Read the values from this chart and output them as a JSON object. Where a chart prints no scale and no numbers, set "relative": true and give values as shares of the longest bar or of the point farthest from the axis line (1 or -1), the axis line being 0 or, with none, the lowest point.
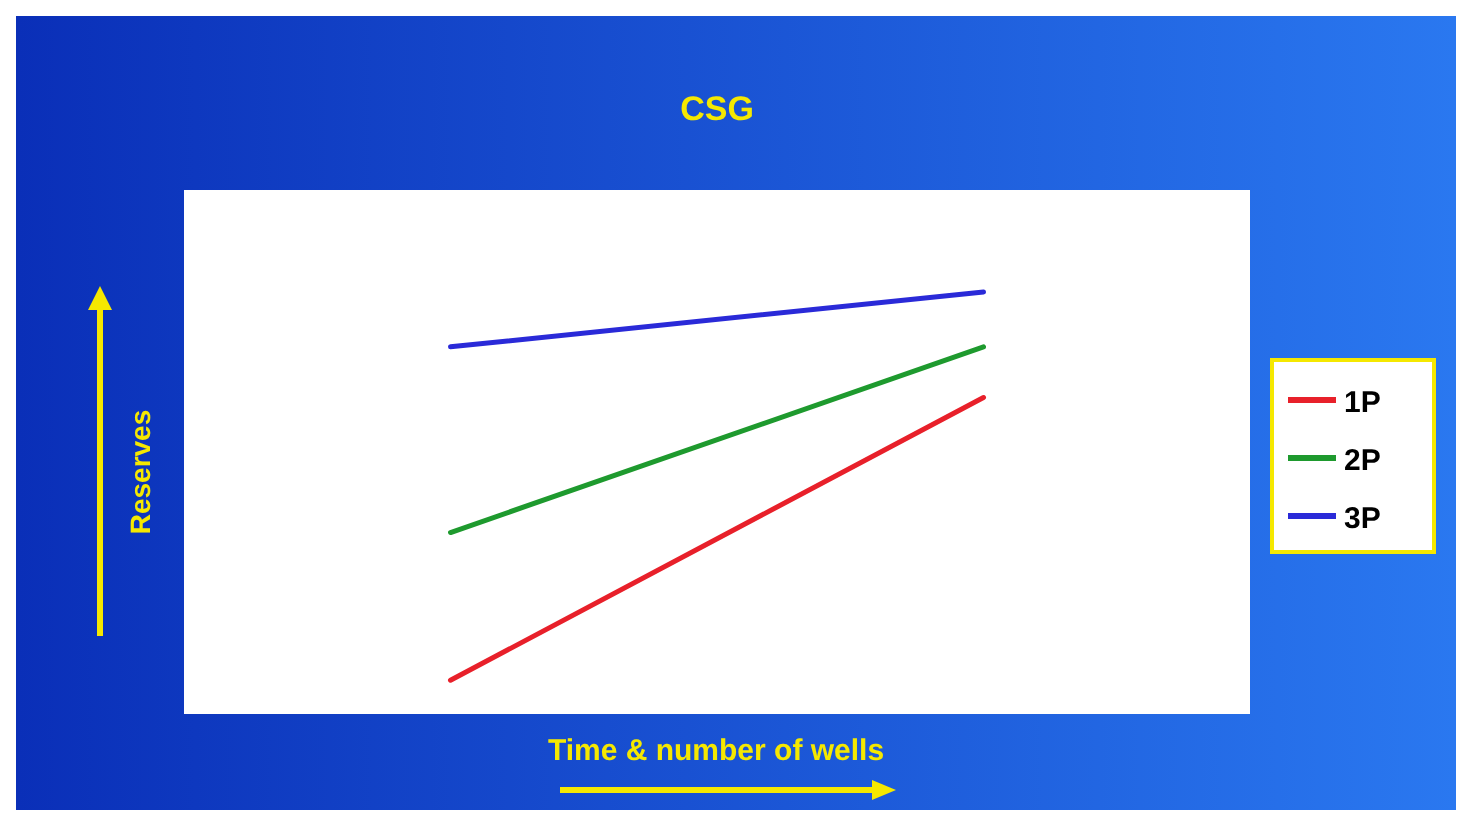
{
  "chart_data": {
    "type": "line",
    "title": "CSG",
    "xlabel": "Time & number of wells",
    "ylabel": "Reserves",
    "relative": true,
    "categories": [
      null,
      null
    ],
    "legend": "right",
    "series": [
      {
        "name": "1P",
        "color": "#e8202a",
        "values": [
          0.08,
          0.75
        ]
      },
      {
        "name": "2P",
        "color": "#1e9a2e",
        "values": [
          0.43,
          0.87
        ]
      },
      {
        "name": "3P",
        "color": "#2a2ad8",
        "values": [
          0.87,
          1
        ]
      }
    ]
  }
}
